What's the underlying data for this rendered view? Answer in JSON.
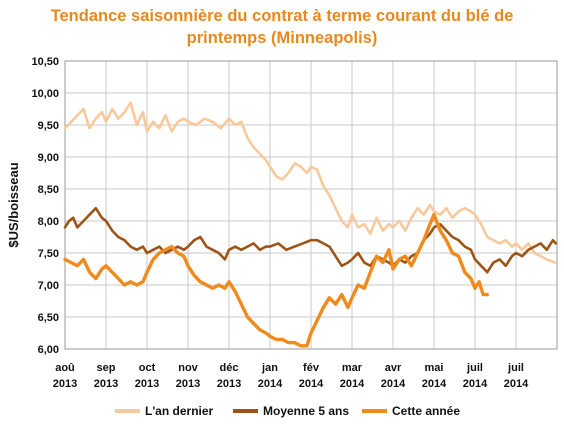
{
  "chart_data": {
    "type": "line",
    "title_line1": "Tendance saisonnière du contrat à terme courant du blé de",
    "title_line2": "printemps (Minneapolis)",
    "ylabel": "$US/boisseau",
    "ylim": [
      6.0,
      10.5
    ],
    "yticks": [
      "6,00",
      "6,50",
      "7,00",
      "7,50",
      "8,00",
      "8,50",
      "9,00",
      "9,50",
      "10,00",
      "10,50"
    ],
    "xticks": [
      {
        "m": "aoû",
        "y": "2013"
      },
      {
        "m": "sep",
        "y": "2013"
      },
      {
        "m": "oct",
        "y": "2013"
      },
      {
        "m": "nov",
        "y": "2013"
      },
      {
        "m": "déc",
        "y": "2013"
      },
      {
        "m": "jan",
        "y": "2014"
      },
      {
        "m": "fév",
        "y": "2014"
      },
      {
        "m": "mar",
        "y": "2014"
      },
      {
        "m": "avr",
        "y": "2014"
      },
      {
        "m": "mai",
        "y": "2014"
      },
      {
        "m": "juil",
        "y": "2014"
      },
      {
        "m": "juil",
        "y": "2014"
      }
    ],
    "grid": true,
    "legend_position": "bottom",
    "series": [
      {
        "name": "L'an dernier",
        "color": "#F8C99A",
        "x": [
          0,
          0.15,
          0.3,
          0.45,
          0.6,
          0.75,
          0.9,
          1.0,
          1.15,
          1.3,
          1.45,
          1.6,
          1.75,
          1.9,
          2.0,
          2.15,
          2.3,
          2.45,
          2.6,
          2.75,
          2.9,
          3.0,
          3.2,
          3.4,
          3.6,
          3.8,
          4.0,
          4.15,
          4.3,
          4.45,
          4.6,
          4.75,
          4.9,
          5.0,
          5.15,
          5.3,
          5.45,
          5.6,
          5.75,
          5.9,
          6.0,
          6.15,
          6.3,
          6.45,
          6.6,
          6.75,
          6.9,
          7.0,
          7.15,
          7.3,
          7.45,
          7.6,
          7.75,
          7.9,
          8.0,
          8.15,
          8.3,
          8.45,
          8.6,
          8.75,
          8.9,
          9.0,
          9.15,
          9.3,
          9.45,
          9.6,
          9.75,
          9.9,
          10.0,
          10.15,
          10.3,
          10.45,
          10.6,
          10.75,
          10.9,
          11.0,
          11.15,
          11.3,
          11.45,
          11.6,
          11.75,
          11.95
        ],
        "y": [
          9.45,
          9.55,
          9.65,
          9.75,
          9.45,
          9.6,
          9.7,
          9.55,
          9.75,
          9.6,
          9.7,
          9.85,
          9.5,
          9.7,
          9.4,
          9.55,
          9.45,
          9.65,
          9.4,
          9.55,
          9.6,
          9.55,
          9.5,
          9.6,
          9.55,
          9.45,
          9.6,
          9.5,
          9.55,
          9.3,
          9.15,
          9.05,
          8.95,
          8.85,
          8.7,
          8.65,
          8.75,
          8.9,
          8.85,
          8.75,
          8.85,
          8.8,
          8.55,
          8.4,
          8.2,
          8.0,
          7.9,
          8.1,
          7.9,
          7.95,
          7.8,
          8.05,
          7.85,
          7.95,
          7.9,
          8.0,
          7.85,
          8.05,
          8.2,
          8.1,
          8.25,
          8.15,
          8.1,
          8.2,
          8.05,
          8.15,
          8.2,
          8.15,
          8.1,
          7.95,
          7.75,
          7.7,
          7.65,
          7.7,
          7.6,
          7.65,
          7.55,
          7.65,
          7.5,
          7.45,
          7.4,
          7.35
        ]
      },
      {
        "name": "Moyenne 5 ans",
        "color": "#9E5416",
        "x": [
          0,
          0.1,
          0.2,
          0.3,
          0.45,
          0.6,
          0.75,
          0.9,
          1.0,
          1.15,
          1.3,
          1.45,
          1.6,
          1.75,
          1.9,
          2.0,
          2.15,
          2.3,
          2.45,
          2.6,
          2.75,
          2.9,
          3.0,
          3.15,
          3.3,
          3.45,
          3.6,
          3.75,
          3.9,
          4.0,
          4.15,
          4.3,
          4.45,
          4.6,
          4.75,
          4.9,
          5.0,
          5.2,
          5.4,
          5.6,
          5.8,
          6.0,
          6.15,
          6.3,
          6.45,
          6.6,
          6.75,
          6.9,
          7.0,
          7.15,
          7.3,
          7.45,
          7.6,
          7.75,
          7.9,
          8.0,
          8.15,
          8.3,
          8.45,
          8.6,
          8.75,
          8.9,
          9.0,
          9.15,
          9.3,
          9.45,
          9.6,
          9.75,
          9.9,
          10.0,
          10.15,
          10.3,
          10.45,
          10.6,
          10.75,
          10.9,
          11.0,
          11.15,
          11.3,
          11.45,
          11.6,
          11.75,
          11.9,
          11.97
        ],
        "y": [
          7.9,
          8.0,
          8.05,
          7.9,
          8.0,
          8.1,
          8.2,
          8.05,
          8.0,
          7.85,
          7.75,
          7.7,
          7.6,
          7.55,
          7.6,
          7.5,
          7.55,
          7.6,
          7.5,
          7.55,
          7.6,
          7.55,
          7.6,
          7.7,
          7.75,
          7.6,
          7.55,
          7.5,
          7.4,
          7.55,
          7.6,
          7.55,
          7.6,
          7.65,
          7.55,
          7.6,
          7.6,
          7.65,
          7.55,
          7.6,
          7.65,
          7.7,
          7.7,
          7.65,
          7.6,
          7.45,
          7.3,
          7.35,
          7.4,
          7.5,
          7.35,
          7.3,
          7.45,
          7.4,
          7.35,
          7.3,
          7.4,
          7.35,
          7.45,
          7.5,
          7.7,
          7.8,
          7.9,
          7.95,
          7.85,
          7.75,
          7.7,
          7.6,
          7.55,
          7.4,
          7.3,
          7.2,
          7.35,
          7.4,
          7.3,
          7.45,
          7.5,
          7.45,
          7.55,
          7.6,
          7.65,
          7.55,
          7.7,
          7.65
        ]
      },
      {
        "name": "Cette année",
        "color": "#EF8A1C",
        "x": [
          0,
          0.15,
          0.3,
          0.45,
          0.6,
          0.75,
          0.9,
          1.0,
          1.15,
          1.3,
          1.45,
          1.6,
          1.75,
          1.9,
          2.0,
          2.15,
          2.3,
          2.45,
          2.6,
          2.75,
          2.9,
          3.0,
          3.15,
          3.3,
          3.45,
          3.6,
          3.75,
          3.9,
          4.0,
          4.15,
          4.3,
          4.45,
          4.6,
          4.75,
          4.9,
          5.0,
          5.15,
          5.3,
          5.45,
          5.6,
          5.75,
          5.9,
          6.0,
          6.15,
          6.3,
          6.45,
          6.6,
          6.75,
          6.9,
          7.0,
          7.15,
          7.3,
          7.45,
          7.6,
          7.75,
          7.9,
          8.0,
          8.15,
          8.3,
          8.45,
          8.6,
          8.75,
          8.9,
          9.0,
          9.15,
          9.3,
          9.45,
          9.6,
          9.75,
          9.9,
          10.0,
          10.1,
          10.2,
          10.3
        ],
        "y": [
          7.4,
          7.35,
          7.3,
          7.4,
          7.2,
          7.1,
          7.25,
          7.3,
          7.2,
          7.1,
          7.0,
          7.05,
          7.0,
          7.05,
          7.2,
          7.4,
          7.5,
          7.55,
          7.6,
          7.5,
          7.45,
          7.3,
          7.15,
          7.05,
          7.0,
          6.95,
          7.0,
          6.95,
          7.05,
          6.9,
          6.7,
          6.5,
          6.4,
          6.3,
          6.25,
          6.2,
          6.15,
          6.15,
          6.1,
          6.1,
          6.05,
          6.05,
          6.25,
          6.45,
          6.65,
          6.8,
          6.7,
          6.85,
          6.65,
          6.8,
          7.0,
          6.95,
          7.2,
          7.45,
          7.35,
          7.55,
          7.25,
          7.4,
          7.45,
          7.3,
          7.5,
          7.7,
          7.95,
          8.1,
          7.85,
          7.7,
          7.5,
          7.45,
          7.2,
          7.1,
          6.95,
          7.05,
          6.85,
          6.85
        ]
      }
    ]
  }
}
